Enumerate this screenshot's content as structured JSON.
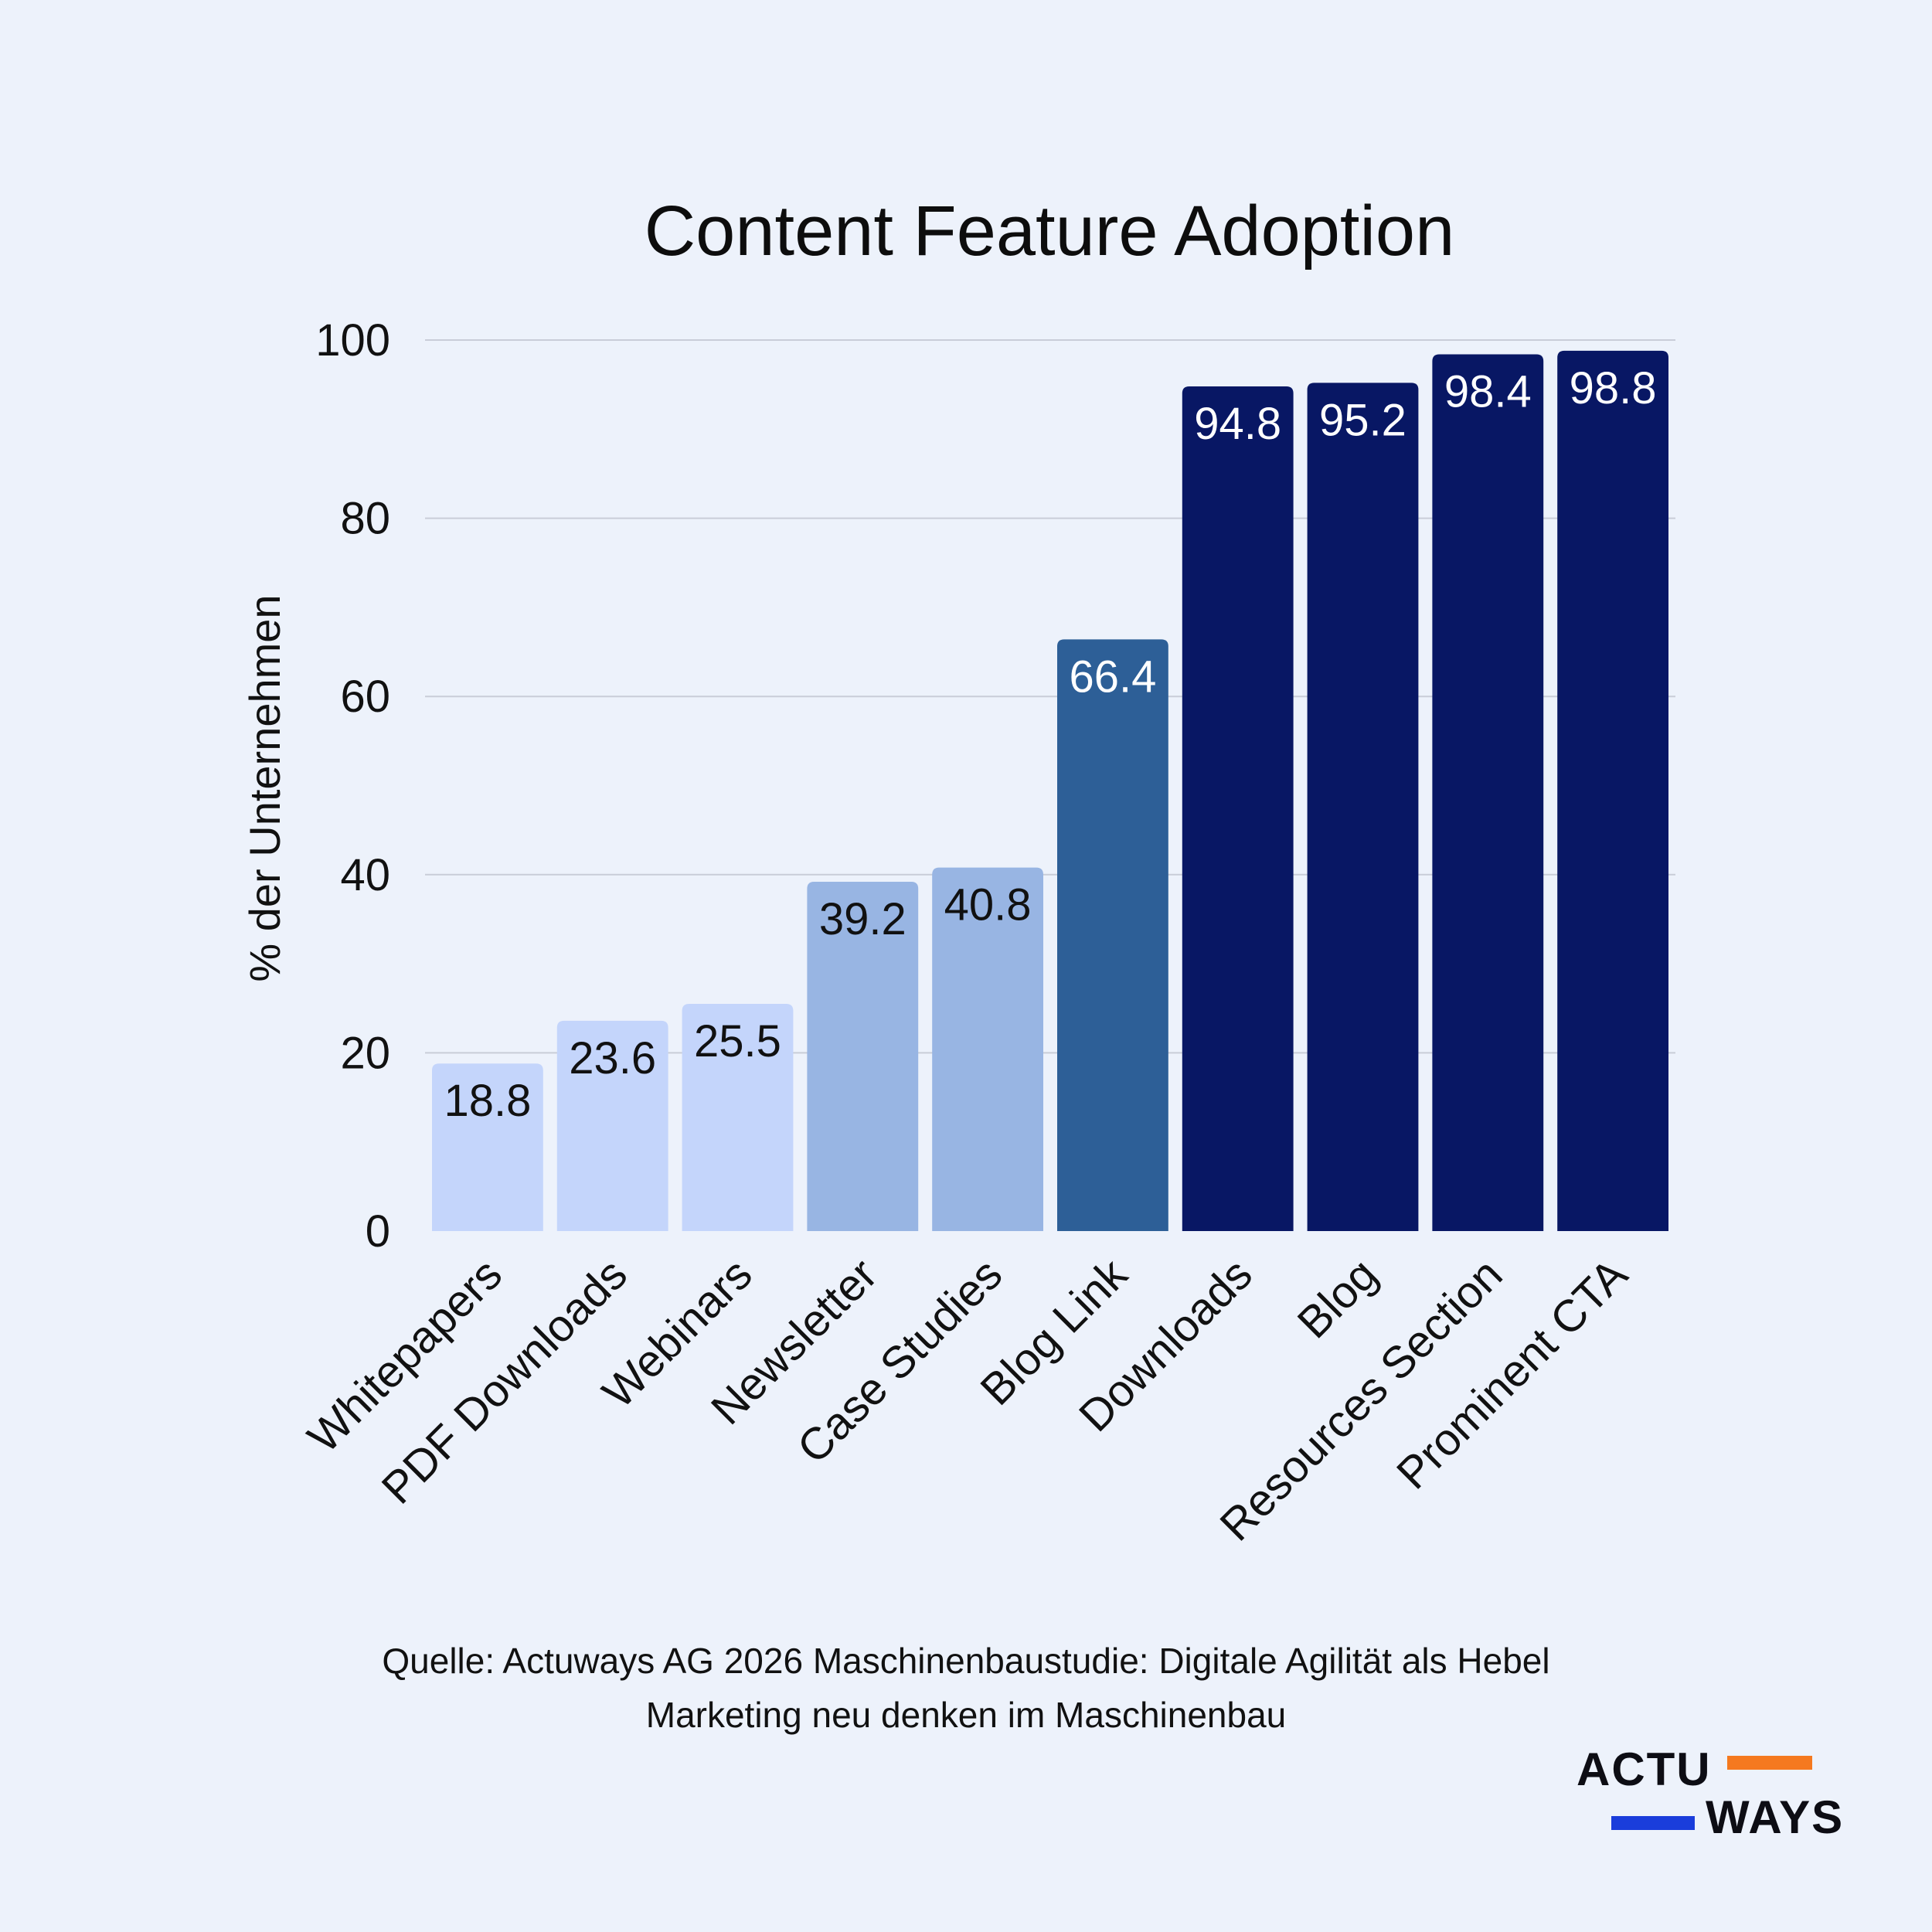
{
  "chart_data": {
    "type": "bar",
    "title": "Content Feature Adoption",
    "ylabel": "% der Unternehmen",
    "xlabel": "",
    "ylim": [
      0,
      100
    ],
    "yticks": [
      0,
      20,
      40,
      60,
      80,
      100
    ],
    "grid": true,
    "categories": [
      "Whitepapers",
      "PDF Downloads",
      "Webinars",
      "Newsletter",
      "Case Studies",
      "Blog Link",
      "Downloads",
      "Blog",
      "Resources Section",
      "Prominent CTA"
    ],
    "values": [
      18.8,
      23.6,
      25.5,
      39.2,
      40.8,
      66.4,
      94.8,
      95.2,
      98.4,
      98.8
    ],
    "value_labels": [
      "18.8",
      "23.6",
      "25.5",
      "39.2",
      "40.8",
      "66.4",
      "94.8",
      "95.2",
      "98.4",
      "98.8"
    ],
    "bar_colors": [
      "#c4d5fb",
      "#c4d5fb",
      "#c4d5fb",
      "#98b5e3",
      "#98b5e3",
      "#2d5f97",
      "#081764",
      "#081764",
      "#081764",
      "#081764"
    ],
    "label_colors": [
      "#111111",
      "#111111",
      "#111111",
      "#111111",
      "#111111",
      "#ffffff",
      "#ffffff",
      "#ffffff",
      "#ffffff",
      "#ffffff"
    ]
  },
  "source": {
    "line1": "Quelle: Actuways AG 2026 Maschinenbaustudie: Digitale Agilität als Hebel",
    "line2": "Marketing neu denken im Maschinenbau"
  },
  "logo": {
    "top_word": "ACTU",
    "bottom_word": "WAYS",
    "accent_orange": "#f5791f",
    "accent_blue": "#1a3ddb"
  },
  "colors": {
    "background": "#edf2fb",
    "grid": "#c9cdd8",
    "text": "#111111"
  }
}
